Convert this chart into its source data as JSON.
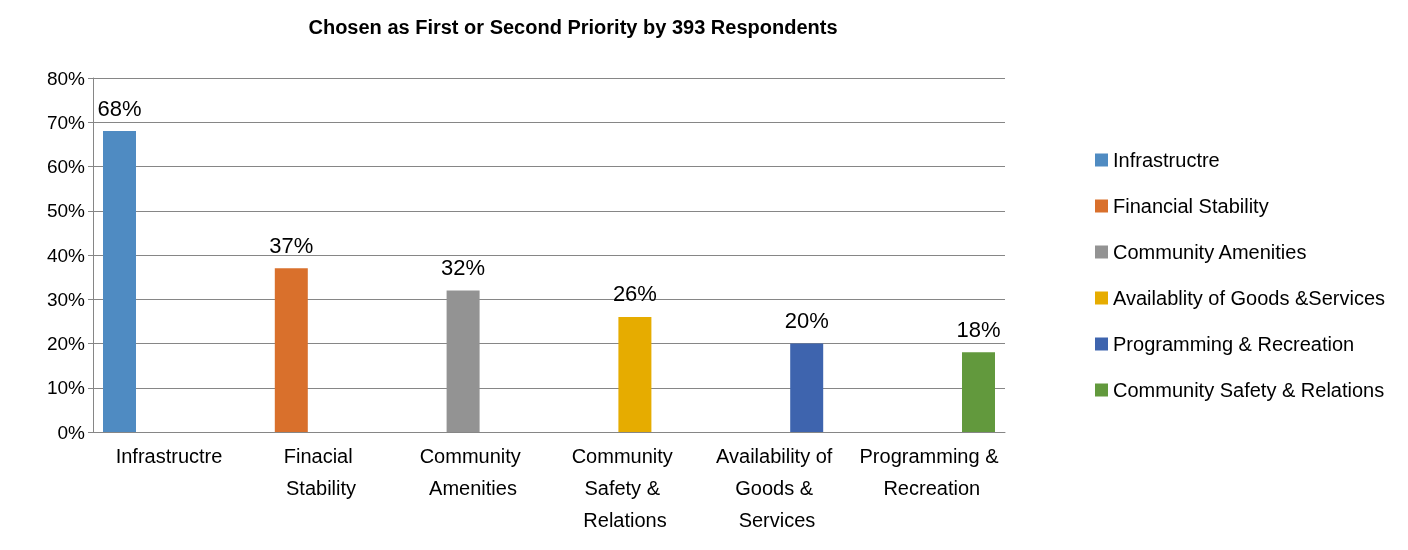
{
  "chart_data": {
    "type": "bar",
    "title": "Chosen as First or Second Priority by 393 Respondents",
    "categories": [
      "Infrastructre",
      "Finacial Stability",
      "Community Amenities",
      "Community Safety & Relations",
      "Availability of Goods & Services",
      "Programming & Recreation"
    ],
    "series": [
      {
        "name": "Infrastructre",
        "color": "#4f8bc2",
        "values": [
          68,
          null,
          null,
          null,
          null,
          null
        ],
        "value_labels": [
          "68%",
          null,
          null,
          null,
          null,
          null
        ]
      },
      {
        "name": "Financial Stability",
        "color": "#d9702c",
        "values": [
          null,
          37,
          null,
          null,
          null,
          null
        ],
        "value_labels": [
          null,
          "37%",
          null,
          null,
          null,
          null
        ]
      },
      {
        "name": "Community Amenities",
        "color": "#939393",
        "values": [
          null,
          null,
          32,
          null,
          null,
          null
        ],
        "value_labels": [
          null,
          null,
          "32%",
          null,
          null,
          null
        ]
      },
      {
        "name": "Availablity of Goods &Services",
        "color": "#e6ac00",
        "values": [
          null,
          null,
          null,
          26,
          null,
          null
        ],
        "value_labels": [
          null,
          null,
          null,
          "26%",
          null,
          null
        ]
      },
      {
        "name": "Programming & Recreation",
        "color": "#3e64ae",
        "values": [
          null,
          null,
          null,
          null,
          20,
          null
        ],
        "value_labels": [
          null,
          null,
          null,
          null,
          "20%",
          null
        ]
      },
      {
        "name": "Community Safety & Relations",
        "color": "#62993d",
        "values": [
          null,
          null,
          null,
          null,
          null,
          18
        ],
        "value_labels": [
          null,
          null,
          null,
          null,
          null,
          "18%"
        ]
      }
    ],
    "ylim": [
      0,
      80
    ],
    "yticks": [
      {
        "value": 0,
        "label": "0%"
      },
      {
        "value": 10,
        "label": "10%"
      },
      {
        "value": 20,
        "label": "20%"
      },
      {
        "value": 30,
        "label": "30%"
      },
      {
        "value": 40,
        "label": "40%"
      },
      {
        "value": 50,
        "label": "50%"
      },
      {
        "value": 60,
        "label": "60%"
      },
      {
        "value": 70,
        "label": "70%"
      },
      {
        "value": 80,
        "label": "80%"
      }
    ],
    "grid": "y",
    "legend": "right"
  }
}
